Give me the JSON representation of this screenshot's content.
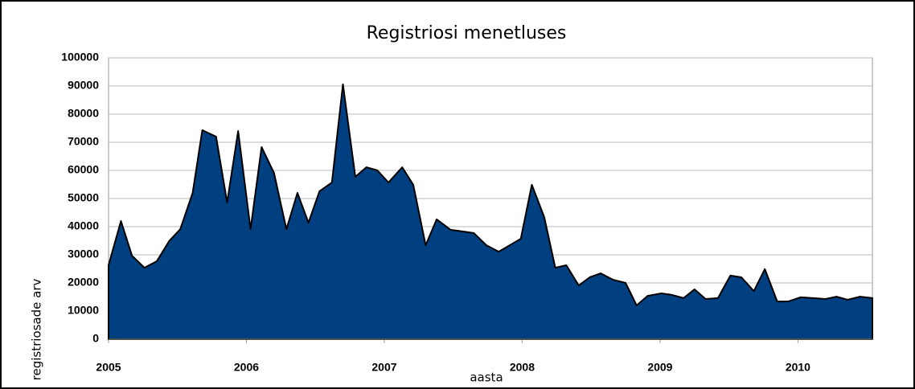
{
  "chart_data": {
    "type": "area",
    "title": "Registriosi menetluses",
    "xlabel": "aasta",
    "ylabel": "registriosade arv",
    "x": [
      2005.0,
      2005.09,
      2005.17,
      2005.26,
      2005.35,
      2005.44,
      2005.52,
      2005.61,
      2005.68,
      2005.78,
      2005.86,
      2005.94,
      2006.03,
      2006.11,
      2006.2,
      2006.29,
      2006.37,
      2006.45,
      2006.53,
      2006.62,
      2006.7,
      2006.79,
      2006.87,
      2006.95,
      2007.03,
      2007.13,
      2007.21,
      2007.3,
      2007.38,
      2007.48,
      2007.57,
      2007.65,
      2007.74,
      2007.83,
      2007.91,
      2007.99,
      2008.07,
      2008.16,
      2008.24,
      2008.32,
      2008.41,
      2008.49,
      2008.57,
      2008.66,
      2008.75,
      2008.83,
      2008.91,
      2009.01,
      2009.09,
      2009.17,
      2009.25,
      2009.33,
      2009.42,
      2009.51,
      2009.59,
      2009.68,
      2009.76,
      2009.85,
      2009.93,
      2010.02,
      2010.11,
      2010.2,
      2010.28,
      2010.36,
      2010.45,
      2010.54
    ],
    "values": [
      26300,
      42000,
      29700,
      25400,
      27700,
      34900,
      39100,
      52000,
      74300,
      72000,
      48600,
      74000,
      39100,
      68300,
      59100,
      39100,
      52000,
      41400,
      52600,
      55700,
      90600,
      57700,
      61100,
      60000,
      55700,
      61100,
      54900,
      33400,
      42600,
      38900,
      38300,
      37700,
      33400,
      31100,
      33400,
      35700,
      54900,
      43400,
      25400,
      26300,
      19100,
      22000,
      23400,
      21100,
      20000,
      12000,
      15400,
      16300,
      15700,
      14600,
      17700,
      14300,
      14600,
      22600,
      22000,
      17100,
      24900,
      13400,
      13400,
      14900,
      14600,
      14300,
      15100,
      14000,
      15100,
      14600
    ],
    "color": "#003f80",
    "xlim": [
      2005,
      2010.54
    ],
    "xticks": [
      2005,
      2006,
      2007,
      2008,
      2009,
      2010
    ],
    "ylim": [
      0,
      100000
    ],
    "yticks": [
      0,
      10000,
      20000,
      30000,
      40000,
      50000,
      60000,
      70000,
      80000,
      90000,
      100000
    ],
    "grid": true
  }
}
